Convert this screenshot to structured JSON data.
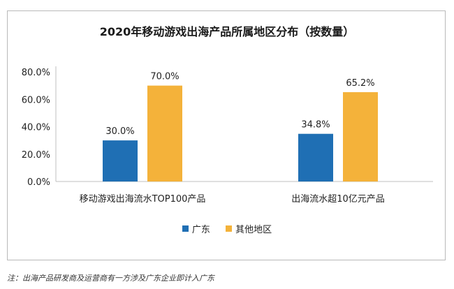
{
  "chart_data": {
    "type": "bar",
    "title": "2020年移动游戏出海产品所属地区分布（按数量）",
    "categories": [
      "移动游戏出海流水TOP100产品",
      "出海流水超10亿元产品"
    ],
    "series": [
      {
        "name": "广东",
        "values": [
          30.0,
          34.8
        ],
        "labels": [
          "30.0%",
          "34.8%"
        ],
        "color": "#1f6fb4"
      },
      {
        "name": "其他地区",
        "values": [
          70.0,
          65.2
        ],
        "labels": [
          "70.0%",
          "65.2%"
        ],
        "color": "#f4b23a"
      }
    ],
    "yticks": [
      "0.0%",
      "20.0%",
      "40.0%",
      "60.0%",
      "80.0%"
    ],
    "ylim": [
      0,
      80
    ],
    "grid": false,
    "legend_position": "bottom"
  },
  "footnote": "注：出海产品研发商及运营商有一方涉及广东企业即计入广东"
}
